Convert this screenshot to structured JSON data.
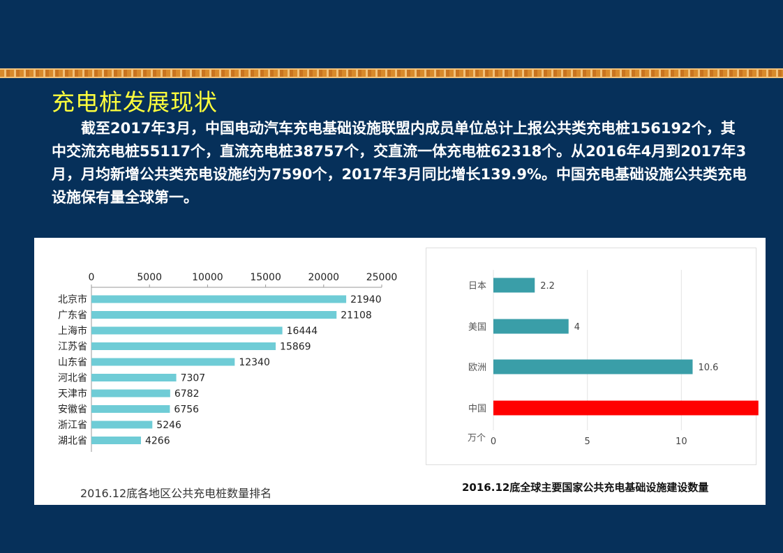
{
  "title": "充电桩发展现状",
  "paragraph": "截至2017年3月，中国电动汽车充电基础设施联盟内成员单位总计上报公共类充电桩156192个，其中交流充电桩55117个，直流充电桩38757个，交直流一体充电桩62318个。从2016年4月到2017年3月，月均新增公共类充电设施约为7590个，2017年3月同比增长139.9%。中国充电基础设施公共类充电设施保有量全球第一。",
  "colors": {
    "background": "#06305a",
    "title": "#ffff3c",
    "bar_left": "#6fccd6",
    "bar_right": "#3a9ea8",
    "bar_china": "#ff0000"
  },
  "chart_data": [
    {
      "type": "bar",
      "orientation": "horizontal",
      "caption": "2016.12底各地区公共充电桩数量排名",
      "categories": [
        "北京市",
        "广东省",
        "上海市",
        "江苏省",
        "山东省",
        "河北省",
        "天津市",
        "安徽省",
        "浙江省",
        "湖北省"
      ],
      "values": [
        21940,
        21108,
        16444,
        15869,
        12340,
        7307,
        6782,
        6756,
        5246,
        4266
      ],
      "xlim": [
        0,
        25000
      ],
      "ticks": [
        0,
        5000,
        10000,
        15000,
        20000,
        25000
      ],
      "axis_position": "top",
      "grid": false
    },
    {
      "type": "bar",
      "orientation": "horizontal",
      "caption": "2016.12底全球主要国家公共充电基础设施建设数量",
      "unit_label": "万个",
      "categories": [
        "日本",
        "美国",
        "欧洲",
        "中国"
      ],
      "values": [
        2.2,
        4,
        10.6,
        14.1
      ],
      "xlim": [
        0,
        15
      ],
      "ticks": [
        0,
        5,
        10,
        15
      ],
      "grid": true
    }
  ]
}
